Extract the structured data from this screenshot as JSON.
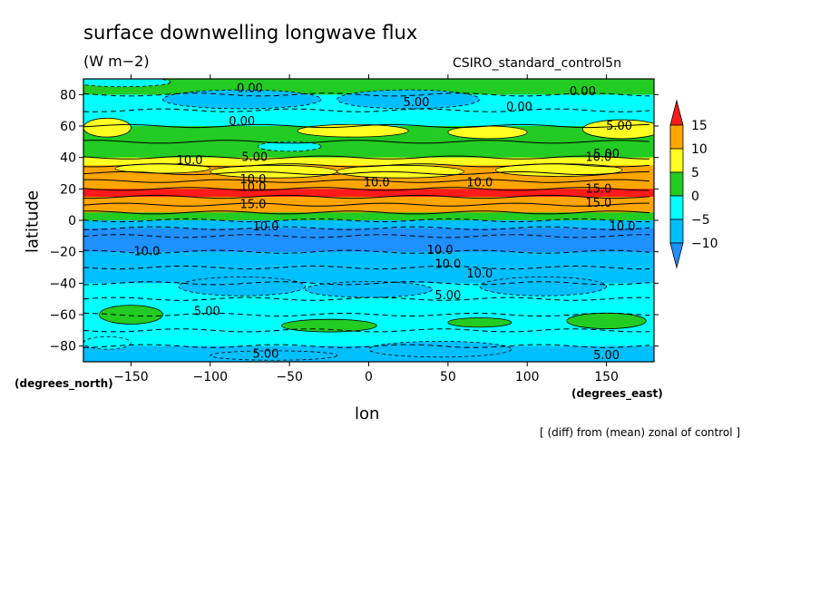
{
  "header": {
    "title": "surface downwelling longwave flux",
    "units": "(W m−2)",
    "run_name": "CSIRO_standard_control5n"
  },
  "axes": {
    "xlabel": "lon",
    "ylabel": "latitude",
    "x_unit_label": "(degrees_east)",
    "y_unit_label": "(degrees_north)"
  },
  "footer": {
    "note": "[ (diff) from (mean) zonal of control ]"
  },
  "colors": {
    "le_m10": "#1e90ff",
    "m10_m5": "#00bfff",
    "m5_0": "#00ffff",
    "0_5": "#22cc22",
    "5_10": "#ffff22",
    "10_15": "#ffa500",
    "ge_15": "#ff1a1a"
  },
  "chart_data": {
    "type": "heatmap",
    "title": "surface downwelling longwave flux",
    "subtitle": "(W m−2)",
    "xlabel": "lon",
    "ylabel": "latitude",
    "xlim": [
      -180,
      180
    ],
    "ylim": [
      -90,
      90
    ],
    "x_ticks": [
      -150,
      -100,
      -50,
      0,
      50,
      100,
      150
    ],
    "y_ticks": [
      -80,
      -60,
      -40,
      -20,
      0,
      20,
      40,
      60,
      80
    ],
    "colorbar": {
      "levels": [
        -10,
        -5,
        0,
        5,
        10,
        15
      ],
      "tick_labels": [
        "15",
        "10",
        "5",
        "0",
        "−5",
        "−10"
      ],
      "placement": "right"
    },
    "zonal_profile": {
      "lat": [
        90,
        80,
        70,
        60,
        50,
        40,
        35,
        30,
        25,
        20,
        15,
        10,
        5,
        0,
        -5,
        -10,
        -20,
        -30,
        -40,
        -50,
        -60,
        -70,
        -80,
        -90
      ],
      "value": [
        2,
        -1,
        -4,
        3,
        0.5,
        6,
        11,
        9,
        11,
        15,
        16,
        13,
        9,
        -3,
        -12,
        -11,
        -11,
        -8,
        -6,
        -3,
        -2,
        -4,
        -5,
        -7
      ]
    },
    "contour_labels": [
      {
        "text": "0.00",
        "lon": -75,
        "lat": 84
      },
      {
        "text": "5.00",
        "lon": 30,
        "lat": 75
      },
      {
        "text": "0.00",
        "lon": 95,
        "lat": 72
      },
      {
        "text": "0.00",
        "lon": 135,
        "lat": 82
      },
      {
        "text": "5.00",
        "lon": 158,
        "lat": 60
      },
      {
        "text": "0.00",
        "lon": -80,
        "lat": 63
      },
      {
        "text": "10.0",
        "lon": -113,
        "lat": 38
      },
      {
        "text": "5.00",
        "lon": -72,
        "lat": 40
      },
      {
        "text": "10.0",
        "lon": 145,
        "lat": 40
      },
      {
        "text": "5.00",
        "lon": 150,
        "lat": 42
      },
      {
        "text": "10.0",
        "lon": -73,
        "lat": 26
      },
      {
        "text": "10.0",
        "lon": -73,
        "lat": 21
      },
      {
        "text": "10.0",
        "lon": 5,
        "lat": 24
      },
      {
        "text": "10.0",
        "lon": 70,
        "lat": 24
      },
      {
        "text": "15.0",
        "lon": 145,
        "lat": 20
      },
      {
        "text": "15.0",
        "lon": -73,
        "lat": 10
      },
      {
        "text": "15.0",
        "lon": 145,
        "lat": 11
      },
      {
        "text": "10.0",
        "lon": -65,
        "lat": -4
      },
      {
        "text": "10.0",
        "lon": 160,
        "lat": -4
      },
      {
        "text": "10.0",
        "lon": -140,
        "lat": -20
      },
      {
        "text": "10.0",
        "lon": 45,
        "lat": -19
      },
      {
        "text": "10.0",
        "lon": 50,
        "lat": -28
      },
      {
        "text": "10.0",
        "lon": 70,
        "lat": -34
      },
      {
        "text": "5.00",
        "lon": 50,
        "lat": -48
      },
      {
        "text": "5.00",
        "lon": -102,
        "lat": -58
      },
      {
        "text": "5.00",
        "lon": -65,
        "lat": -85
      },
      {
        "text": "5.00",
        "lon": 150,
        "lat": -86
      }
    ]
  }
}
